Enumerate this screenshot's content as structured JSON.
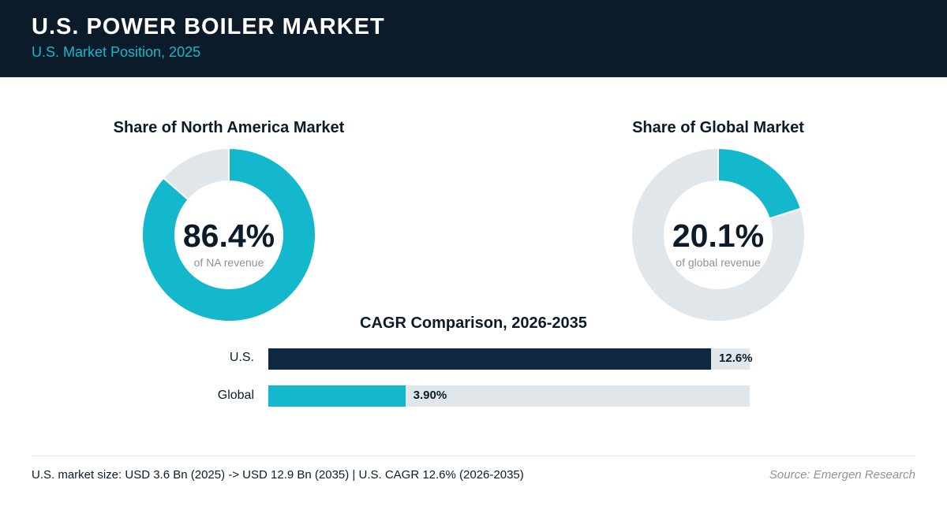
{
  "header": {
    "title": "U.S. POWER BOILER MARKET",
    "subtitle": "U.S. Market Position, 2025"
  },
  "colors": {
    "header_bg": "#0b1b2a",
    "accent": "#14b8cc",
    "navy": "#0d2840",
    "track": "#e1e6eb"
  },
  "chart_data": [
    {
      "type": "pie",
      "variant": "donut",
      "title": "Share of North America Market",
      "value_label": "86.4%",
      "sublabel": "of NA revenue",
      "values": [
        86.4,
        13.6
      ],
      "colors": [
        "#14b8cc",
        "#e1e6eb"
      ]
    },
    {
      "type": "pie",
      "variant": "donut",
      "title": "Share of Global Market",
      "value_label": "20.1%",
      "sublabel": "of global revenue",
      "values": [
        20.1,
        79.9
      ],
      "colors": [
        "#14b8cc",
        "#e1e6eb"
      ]
    },
    {
      "type": "bar",
      "orientation": "horizontal",
      "title": "CAGR Comparison, 2026-2035",
      "categories": [
        "U.S.",
        "Global"
      ],
      "values": [
        12.6,
        3.9
      ],
      "value_labels": [
        "12.6%",
        "3.90%"
      ],
      "xlim": [
        0,
        13.7
      ],
      "colors": [
        "#0d2840",
        "#14b8cc"
      ]
    }
  ],
  "footer": {
    "note": "U.S. market size: USD 3.6 Bn (2025) -> USD 12.9 Bn (2035)  |  U.S. CAGR 12.6% (2026-2035)",
    "source": "Source: Emergen Research"
  }
}
